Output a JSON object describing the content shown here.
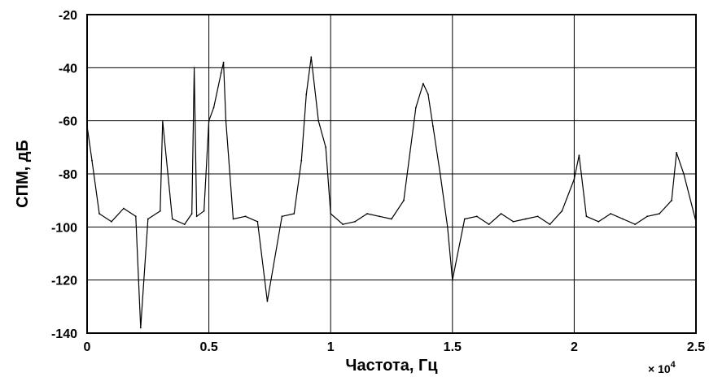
{
  "chart_data": {
    "type": "line",
    "title": "",
    "xlabel": "Частота, Гц",
    "ylabel": "СПМ, дБ",
    "x_multiplier_label": {
      "base": "× 10",
      "exponent": "4"
    },
    "xlim": [
      0,
      2.5
    ],
    "ylim": [
      -140,
      -20
    ],
    "x_ticks": [
      "0",
      "0.5",
      "1",
      "1.5",
      "2",
      "2.5"
    ],
    "y_ticks": [
      "-20",
      "-40",
      "-60",
      "-80",
      "-100",
      "-120",
      "-140"
    ],
    "grid": true,
    "legend": "none",
    "line_color": "#000000",
    "series": [
      {
        "x": [
          0,
          0.02,
          0.05,
          0.1,
          0.15,
          0.2,
          0.22,
          0.25,
          0.3,
          0.31,
          0.35,
          0.4,
          0.43,
          0.44,
          0.45,
          0.48,
          0.5,
          0.52,
          0.55,
          0.56,
          0.57,
          0.6,
          0.65,
          0.7,
          0.74,
          0.8,
          0.85,
          0.88,
          0.9,
          0.92,
          0.95,
          0.98,
          1.0,
          1.05,
          1.1,
          1.15,
          1.2,
          1.25,
          1.3,
          1.35,
          1.38,
          1.4,
          1.42,
          1.45,
          1.48,
          1.5,
          1.55,
          1.6,
          1.65,
          1.7,
          1.75,
          1.8,
          1.85,
          1.9,
          1.95,
          2.0,
          2.02,
          2.05,
          2.1,
          2.15,
          2.2,
          2.25,
          2.3,
          2.35,
          2.4,
          2.42,
          2.45,
          2.5
        ],
        "y": [
          -62,
          -75,
          -95,
          -98,
          -93,
          -96,
          -138,
          -97,
          -94,
          -60,
          -97,
          -99,
          -95,
          -40,
          -96,
          -94,
          -60,
          -55,
          -42,
          -38,
          -60,
          -97,
          -96,
          -98,
          -128,
          -96,
          -95,
          -75,
          -50,
          -36,
          -60,
          -70,
          -95,
          -99,
          -98,
          -95,
          -96,
          -97,
          -90,
          -55,
          -46,
          -50,
          -62,
          -80,
          -100,
          -120,
          -97,
          -96,
          -99,
          -95,
          -98,
          -97,
          -96,
          -99,
          -94,
          -82,
          -73,
          -96,
          -98,
          -95,
          -97,
          -99,
          -96,
          -95,
          -90,
          -72,
          -80,
          -98
        ]
      }
    ]
  }
}
